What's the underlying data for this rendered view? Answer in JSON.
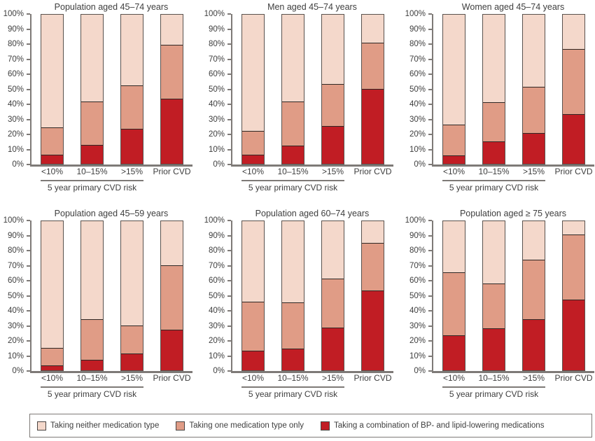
{
  "colors": {
    "neither": "#f4d8cb",
    "one": "#e09c86",
    "combo": "#c11d24",
    "bar_border": "#5a524e",
    "axis": "#7e7a77",
    "text": "#3e3e3e"
  },
  "axis": {
    "y_tick_labels": [
      "100%",
      "90%",
      "80%",
      "70%",
      "60%",
      "50%",
      "40%",
      "30%",
      "20%",
      "10%",
      "0%"
    ],
    "x_categories": [
      "<10%",
      "10–15%",
      ">15%",
      "Prior CVD"
    ],
    "x_group_label": "5 year primary CVD risk",
    "ylim": [
      0,
      100
    ],
    "grid": false
  },
  "legend": {
    "position": "bottom",
    "items": [
      {
        "label": "Taking neither medication type",
        "color_key": "neither"
      },
      {
        "label": "Taking one medication type only",
        "color_key": "one"
      },
      {
        "label": "Taking a combination of BP- and lipid-lowering medications",
        "color_key": "combo"
      }
    ]
  },
  "chart_data": [
    {
      "type": "bar",
      "stacked": true,
      "id": "population-45-74",
      "title": "Population aged 45–74 years",
      "categories": [
        "<10%",
        "10–15%",
        ">15%",
        "Prior CVD"
      ],
      "stack_order": "bottom-to-top",
      "series": [
        {
          "name": "Taking a combination of BP- and lipid-lowering medications",
          "color_key": "combo",
          "values": [
            7,
            13.5,
            24,
            44
          ]
        },
        {
          "name": "Taking one medication type only",
          "color_key": "one",
          "values": [
            18,
            29,
            29,
            36
          ]
        },
        {
          "name": "Taking neither medication type",
          "color_key": "neither",
          "values": [
            75,
            57.5,
            47,
            20
          ]
        }
      ],
      "ylim": [
        0,
        100
      ]
    },
    {
      "type": "bar",
      "stacked": true,
      "id": "men-45-74",
      "title": "Men aged 45–74 years",
      "categories": [
        "<10%",
        "10–15%",
        ">15%",
        "Prior CVD"
      ],
      "stack_order": "bottom-to-top",
      "series": [
        {
          "name": "Taking a combination of BP- and lipid-lowering medications",
          "color_key": "combo",
          "values": [
            7,
            13,
            26,
            50.5
          ]
        },
        {
          "name": "Taking one medication type only",
          "color_key": "one",
          "values": [
            16,
            29.5,
            28,
            31
          ]
        },
        {
          "name": "Taking neither medication type",
          "color_key": "neither",
          "values": [
            77,
            57.5,
            46,
            18.5
          ]
        }
      ],
      "ylim": [
        0,
        100
      ]
    },
    {
      "type": "bar",
      "stacked": true,
      "id": "women-45-74",
      "title": "Women aged 45–74 years",
      "categories": [
        "<10%",
        "10–15%",
        ">15%",
        "Prior CVD"
      ],
      "stack_order": "bottom-to-top",
      "series": [
        {
          "name": "Taking a combination of BP- and lipid-lowering medications",
          "color_key": "combo",
          "values": [
            6.5,
            16,
            21.5,
            34
          ]
        },
        {
          "name": "Taking one medication type only",
          "color_key": "one",
          "values": [
            20.5,
            26,
            30.5,
            43
          ]
        },
        {
          "name": "Taking neither medication type",
          "color_key": "neither",
          "values": [
            73,
            58,
            48,
            23
          ]
        }
      ],
      "ylim": [
        0,
        100
      ]
    },
    {
      "type": "bar",
      "stacked": true,
      "id": "population-45-59",
      "title": "Population aged 45–59 years",
      "categories": [
        "<10%",
        "10–15%",
        ">15%",
        "Prior CVD"
      ],
      "stack_order": "bottom-to-top",
      "series": [
        {
          "name": "Taking a combination of BP- and lipid-lowering medications",
          "color_key": "combo",
          "values": [
            4,
            8,
            12,
            28
          ]
        },
        {
          "name": "Taking one medication type only",
          "color_key": "one",
          "values": [
            12,
            27,
            18.5,
            42.5
          ]
        },
        {
          "name": "Taking neither medication type",
          "color_key": "neither",
          "values": [
            84,
            65,
            69.5,
            29.5
          ]
        }
      ],
      "ylim": [
        0,
        100
      ]
    },
    {
      "type": "bar",
      "stacked": true,
      "id": "population-60-74",
      "title": "Population aged 60–74 years",
      "categories": [
        "<10%",
        "10–15%",
        ">15%",
        "Prior CVD"
      ],
      "stack_order": "bottom-to-top",
      "series": [
        {
          "name": "Taking a combination of BP- and lipid-lowering medications",
          "color_key": "combo",
          "values": [
            14,
            15.5,
            29.5,
            54
          ]
        },
        {
          "name": "Taking one medication type only",
          "color_key": "one",
          "values": [
            32.5,
            30.5,
            32.5,
            31.5
          ]
        },
        {
          "name": "Taking neither medication type",
          "color_key": "neither",
          "values": [
            53.5,
            54,
            38,
            14.5
          ]
        }
      ],
      "ylim": [
        0,
        100
      ]
    },
    {
      "type": "bar",
      "stacked": true,
      "id": "population-75-plus",
      "title": "Population aged ≥ 75 years",
      "categories": [
        "<10%",
        "10–15%",
        ">15%",
        "Prior CVD"
      ],
      "stack_order": "bottom-to-top",
      "series": [
        {
          "name": "Taking a combination of BP- and lipid-lowering medications",
          "color_key": "combo",
          "values": [
            24,
            29,
            35,
            48
          ]
        },
        {
          "name": "Taking one medication type only",
          "color_key": "one",
          "values": [
            42,
            29.5,
            39.5,
            43
          ]
        },
        {
          "name": "Taking neither medication type",
          "color_key": "neither",
          "values": [
            34,
            41.5,
            25.5,
            9
          ]
        }
      ],
      "ylim": [
        0,
        100
      ]
    }
  ]
}
